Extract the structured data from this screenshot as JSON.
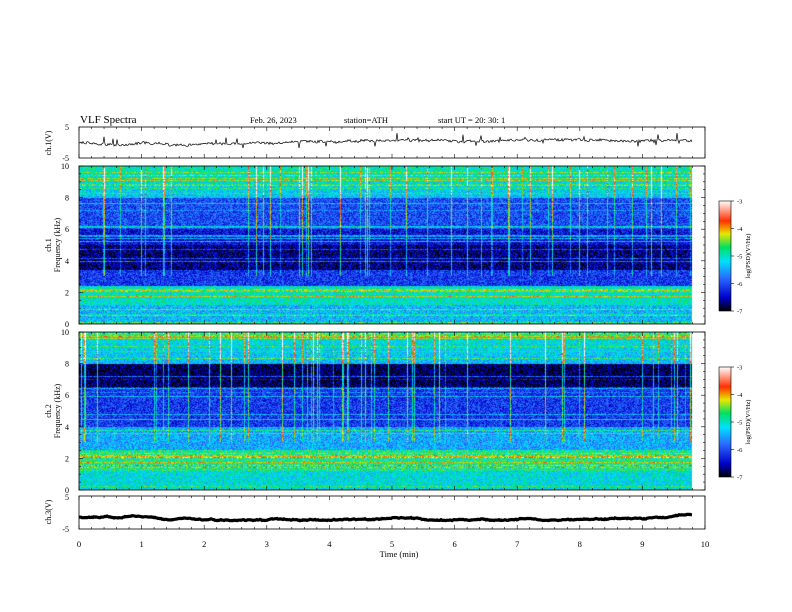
{
  "header": {
    "title": "VLF  Spectra",
    "date": "Feb. 26, 2023",
    "station": "station=ATH",
    "start": "start  UT  =    20: 30: 1"
  },
  "chart_data": [
    {
      "type": "line",
      "id": "ch1",
      "ylabel": "ch.1(V)",
      "ylim": [
        -5,
        5
      ],
      "yticks": [
        "5",
        "-5"
      ],
      "approx_level": 0,
      "xlim": [
        0,
        10
      ]
    },
    {
      "type": "heatmap",
      "id": "spec1",
      "ylabel": "ch.1\nFrequency  (kHz)",
      "ylabel_line1": "ch.1",
      "ylabel_line2": "Frequency  (kHz)",
      "ylim": [
        0,
        10
      ],
      "yticks": [
        "0",
        "2",
        "4",
        "6",
        "8",
        "10"
      ],
      "xlim": [
        0,
        10
      ],
      "colorbar": {
        "label": "log(PSD)(V²/Hz)",
        "range": [
          -7,
          -3
        ],
        "ticks": [
          "-3",
          "-4",
          "-5",
          "-6",
          "-7"
        ]
      }
    },
    {
      "type": "heatmap",
      "id": "spec2",
      "ylabel_line1": "ch.2",
      "ylabel_line2": "Frequency  (kHz)",
      "ylim": [
        0,
        10
      ],
      "yticks": [
        "0",
        "2",
        "4",
        "6",
        "8",
        "10"
      ],
      "xlim": [
        0,
        10
      ],
      "colorbar": {
        "label": "log(PSD)(V²/Hz)",
        "range": [
          -7,
          -3
        ],
        "ticks": [
          "-3",
          "-4",
          "-5",
          "-6",
          "-7"
        ]
      }
    },
    {
      "type": "line",
      "id": "ch3",
      "ylabel": "ch.3(V)",
      "ylim": [
        -5,
        5
      ],
      "yticks": [
        "5",
        "-5"
      ],
      "approx_level": -1.5,
      "xlim": [
        0,
        10
      ]
    }
  ],
  "xaxis": {
    "label": "Time  (min)",
    "ticks": [
      "0",
      "1",
      "2",
      "3",
      "4",
      "5",
      "6",
      "7",
      "8",
      "9",
      "10"
    ]
  },
  "colors": {
    "colormap": [
      "#000000",
      "#0000c8",
      "#2a6bff",
      "#00e0ff",
      "#00e060",
      "#e8e800",
      "#ff3000",
      "#ffffff"
    ]
  }
}
